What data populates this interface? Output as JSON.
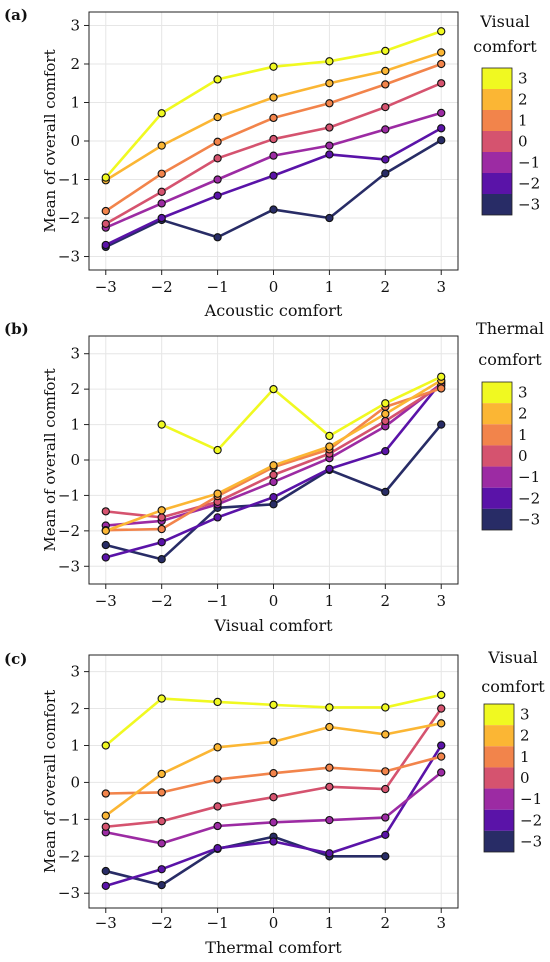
{
  "figure": {
    "ylabel": "Mean of overall comfort"
  },
  "chart_data": [
    {
      "type": "line",
      "panel_label": "(a)",
      "xlabel": "Acoustic comfort",
      "ylabel": "Mean of overall comfort",
      "x": [
        -3,
        -2,
        -1,
        0,
        1,
        2,
        3
      ],
      "xtick_labels": [
        "−3",
        "−2",
        "−1",
        "0",
        "1",
        "2",
        "3"
      ],
      "yticks": [
        -3,
        -2,
        -1,
        0,
        1,
        2,
        3
      ],
      "ytick_labels": [
        "−3",
        "−2",
        "−1",
        "0",
        "1",
        "2",
        "3"
      ],
      "ylim": [
        -3.35,
        3.35
      ],
      "grid": true,
      "legend": {
        "title_lines": [
          "Visual",
          "comfort"
        ],
        "placement": "right",
        "entries": [
          "3",
          "2",
          "1",
          "0",
          "−1",
          "−2",
          "−3"
        ]
      },
      "series": [
        {
          "name": "3",
          "color": "#f0f921",
          "values": [
            -0.95,
            0.72,
            1.6,
            1.93,
            2.07,
            2.34,
            2.85
          ]
        },
        {
          "name": "2",
          "color": "#fbb634",
          "values": [
            -1.02,
            -0.12,
            0.62,
            1.13,
            1.5,
            1.82,
            2.3
          ]
        },
        {
          "name": "1",
          "color": "#f2844b",
          "values": [
            -1.82,
            -0.85,
            -0.02,
            0.6,
            0.98,
            1.47,
            2.0
          ]
        },
        {
          "name": "0",
          "color": "#d5536f",
          "values": [
            -2.15,
            -1.32,
            -0.45,
            0.05,
            0.35,
            0.88,
            1.5
          ]
        },
        {
          "name": "−1",
          "color": "#9c2ba3",
          "values": [
            -2.25,
            -1.62,
            -1.0,
            -0.38,
            -0.12,
            0.3,
            0.73
          ]
        },
        {
          "name": "−2",
          "color": "#5a13a8",
          "values": [
            -2.7,
            -2.0,
            -1.42,
            -0.9,
            -0.35,
            -0.48,
            0.33
          ]
        },
        {
          "name": "−3",
          "color": "#282c66",
          "values": [
            -2.75,
            -2.05,
            -2.5,
            -1.78,
            -2.0,
            -0.84,
            0.02
          ]
        }
      ]
    },
    {
      "type": "line",
      "panel_label": "(b)",
      "xlabel": "Visual comfort",
      "ylabel": "Mean of overall comfort",
      "x": [
        -3,
        -2,
        -1,
        0,
        1,
        2,
        3
      ],
      "xtick_labels": [
        "−3",
        "−2",
        "−1",
        "0",
        "1",
        "2",
        "3"
      ],
      "yticks": [
        -3,
        -2,
        -1,
        0,
        1,
        2,
        3
      ],
      "ytick_labels": [
        "−3",
        "−2",
        "−1",
        "0",
        "1",
        "2",
        "3"
      ],
      "ylim": [
        -3.5,
        3.5
      ],
      "grid": true,
      "legend": {
        "title_lines": [
          "Thermal",
          "comfort"
        ],
        "placement": "right",
        "entries": [
          "3",
          "2",
          "1",
          "0",
          "−1",
          "−2",
          "−3"
        ]
      },
      "series": [
        {
          "name": "3",
          "color": "#f0f921",
          "values": [
            null,
            1.0,
            0.28,
            2.0,
            0.68,
            1.6,
            2.35
          ]
        },
        {
          "name": "2",
          "color": "#fbb634",
          "values": [
            -2.0,
            -1.42,
            -0.95,
            -0.15,
            0.38,
            1.3,
            2.25
          ]
        },
        {
          "name": "1",
          "color": "#f2844b",
          "values": [
            -1.98,
            -1.95,
            -1.02,
            -0.2,
            0.3,
            1.5,
            2.02
          ]
        },
        {
          "name": "0",
          "color": "#d5536f",
          "values": [
            -1.45,
            -1.62,
            -1.18,
            -0.42,
            0.18,
            1.1,
            2.1
          ]
        },
        {
          "name": "−1",
          "color": "#9c2ba3",
          "values": [
            -1.85,
            -1.72,
            -1.25,
            -0.62,
            0.05,
            0.95,
            2.15
          ]
        },
        {
          "name": "−2",
          "color": "#5a13a8",
          "values": [
            -2.75,
            -2.32,
            -1.62,
            -1.05,
            -0.25,
            0.25,
            2.2
          ]
        },
        {
          "name": "−3",
          "color": "#282c66",
          "values": [
            -2.4,
            -2.8,
            -1.35,
            -1.25,
            -0.28,
            -0.9,
            1.0
          ]
        }
      ]
    },
    {
      "type": "line",
      "panel_label": "(c)",
      "xlabel": "Thermal comfort",
      "ylabel": "Mean of overall comfort",
      "x": [
        -3,
        -2,
        -1,
        0,
        1,
        2,
        3
      ],
      "xtick_labels": [
        "−3",
        "−2",
        "−1",
        "0",
        "1",
        "2",
        "3"
      ],
      "yticks": [
        -3,
        -2,
        -1,
        0,
        1,
        2,
        3
      ],
      "ytick_labels": [
        "−3",
        "−2",
        "−1",
        "0",
        "1",
        "2",
        "3"
      ],
      "ylim": [
        -3.4,
        3.45
      ],
      "grid": true,
      "legend": {
        "title_lines": [
          "Visual",
          "comfort"
        ],
        "placement": "right",
        "entries": [
          "3",
          "2",
          "1",
          "0",
          "−1",
          "−2",
          "−3"
        ]
      },
      "series": [
        {
          "name": "3",
          "color": "#f0f921",
          "values": [
            1.0,
            2.27,
            2.18,
            2.1,
            2.03,
            2.03,
            2.37
          ]
        },
        {
          "name": "2",
          "color": "#fbb634",
          "values": [
            -0.9,
            0.23,
            0.95,
            1.1,
            1.5,
            1.3,
            1.6
          ]
        },
        {
          "name": "1",
          "color": "#f2844b",
          "values": [
            -0.3,
            -0.27,
            0.08,
            0.25,
            0.4,
            0.3,
            0.7
          ]
        },
        {
          "name": "0",
          "color": "#d5536f",
          "values": [
            -1.2,
            -1.05,
            -0.65,
            -0.4,
            -0.12,
            -0.18,
            2.0
          ]
        },
        {
          "name": "−1",
          "color": "#9c2ba3",
          "values": [
            -1.35,
            -1.65,
            -1.18,
            -1.08,
            -1.02,
            -0.95,
            0.27
          ]
        },
        {
          "name": "−2",
          "color": "#5a13a8",
          "values": [
            -2.8,
            -2.35,
            -1.78,
            -1.6,
            -1.92,
            -1.42,
            1.0
          ]
        },
        {
          "name": "−3",
          "color": "#282c66",
          "values": [
            -2.4,
            -2.78,
            -1.8,
            -1.47,
            -2.0,
            -2.0,
            null
          ]
        }
      ]
    }
  ]
}
